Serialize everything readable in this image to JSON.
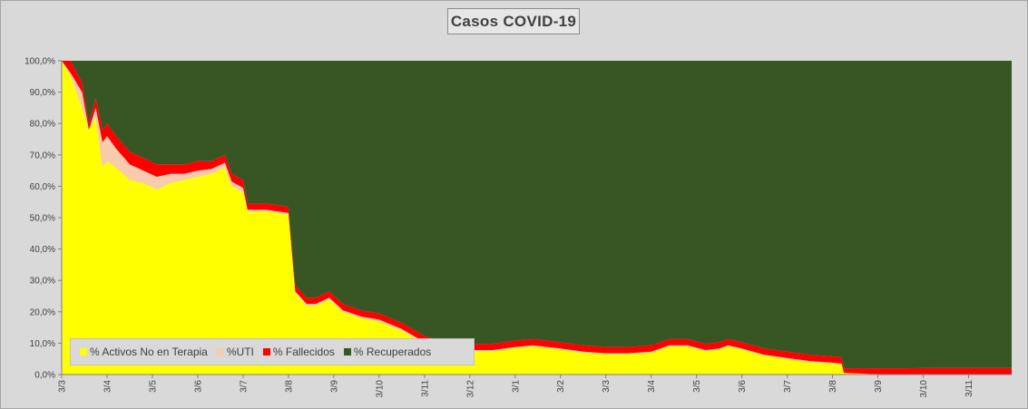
{
  "chart_data": {
    "type": "area",
    "stacked": "percent",
    "title": "Casos COVID-19",
    "xlabel": "",
    "ylabel": "",
    "ylim": [
      0,
      100
    ],
    "grid": false,
    "legend_position": "bottom-left",
    "y_ticks": [
      "0,0%",
      "10,0%",
      "20,0%",
      "30,0%",
      "40,0%",
      "50,0%",
      "60,0%",
      "70,0%",
      "80,0%",
      "90,0%",
      "100,0%"
    ],
    "x_ticks": [
      "3/3",
      "3/4",
      "3/5",
      "3/6",
      "3/7",
      "3/8",
      "3/9",
      "3/10",
      "3/11",
      "3/12",
      "3/1",
      "3/2",
      "3/3",
      "3/4",
      "3/5",
      "3/6",
      "3/7",
      "3/8",
      "3/9",
      "3/10",
      "3/11"
    ],
    "series": [
      {
        "name": "% Activos No en Terapia",
        "color": "#ffff00"
      },
      {
        "name": "%UTI",
        "color": "#f8cbad"
      },
      {
        "name": "% Fallecidos",
        "color": "#ff0000"
      },
      {
        "name": "% Recuperados",
        "color": "#375623"
      }
    ],
    "points": [
      {
        "t": 0.0,
        "active": 100,
        "uti": 0,
        "dead": 0
      },
      {
        "t": 0.2,
        "active": 95,
        "uti": 1,
        "dead": 4
      },
      {
        "t": 0.45,
        "active": 85,
        "uti": 5,
        "dead": 3
      },
      {
        "t": 0.6,
        "active": 78,
        "uti": 0,
        "dead": 2
      },
      {
        "t": 0.75,
        "active": 82,
        "uti": 3,
        "dead": 3
      },
      {
        "t": 0.9,
        "active": 66,
        "uti": 8,
        "dead": 4
      },
      {
        "t": 1.0,
        "active": 68,
        "uti": 8,
        "dead": 4
      },
      {
        "t": 1.2,
        "active": 66,
        "uti": 6,
        "dead": 4
      },
      {
        "t": 1.5,
        "active": 62,
        "uti": 5,
        "dead": 4
      },
      {
        "t": 1.8,
        "active": 61,
        "uti": 4,
        "dead": 4
      },
      {
        "t": 2.1,
        "active": 59,
        "uti": 4,
        "dead": 4
      },
      {
        "t": 2.4,
        "active": 61,
        "uti": 3,
        "dead": 3
      },
      {
        "t": 2.7,
        "active": 62,
        "uti": 2,
        "dead": 3
      },
      {
        "t": 3.0,
        "active": 63,
        "uti": 2,
        "dead": 3
      },
      {
        "t": 3.3,
        "active": 64,
        "uti": 1.5,
        "dead": 2.5
      },
      {
        "t": 3.6,
        "active": 66,
        "uti": 1.5,
        "dead": 2.5
      },
      {
        "t": 3.75,
        "active": 60,
        "uti": 1.5,
        "dead": 2.5
      },
      {
        "t": 4.0,
        "active": 58,
        "uti": 1.5,
        "dead": 2.5
      },
      {
        "t": 4.1,
        "active": 52,
        "uti": 0.5,
        "dead": 2
      },
      {
        "t": 4.5,
        "active": 52,
        "uti": 0.5,
        "dead": 2
      },
      {
        "t": 5.0,
        "active": 51,
        "uti": 0.5,
        "dead": 2
      },
      {
        "t": 5.15,
        "active": 26,
        "uti": 0.5,
        "dead": 2
      },
      {
        "t": 5.4,
        "active": 22,
        "uti": 0.5,
        "dead": 2
      },
      {
        "t": 5.6,
        "active": 22,
        "uti": 0.5,
        "dead": 2
      },
      {
        "t": 5.9,
        "active": 24,
        "uti": 0.5,
        "dead": 2
      },
      {
        "t": 6.2,
        "active": 20,
        "uti": 0.5,
        "dead": 2
      },
      {
        "t": 6.6,
        "active": 18,
        "uti": 0.5,
        "dead": 2
      },
      {
        "t": 7.0,
        "active": 17,
        "uti": 0.5,
        "dead": 2
      },
      {
        "t": 7.5,
        "active": 14,
        "uti": 0.5,
        "dead": 2
      },
      {
        "t": 8.0,
        "active": 10,
        "uti": 0.3,
        "dead": 2
      },
      {
        "t": 8.5,
        "active": 8,
        "uti": 0.3,
        "dead": 2
      },
      {
        "t": 9.0,
        "active": 7.5,
        "uti": 0.3,
        "dead": 2
      },
      {
        "t": 9.5,
        "active": 7.5,
        "uti": 0.3,
        "dead": 2
      },
      {
        "t": 10.0,
        "active": 8.5,
        "uti": 0.3,
        "dead": 2
      },
      {
        "t": 10.4,
        "active": 9,
        "uti": 0.3,
        "dead": 2
      },
      {
        "t": 11.0,
        "active": 8,
        "uti": 0.3,
        "dead": 2
      },
      {
        "t": 11.5,
        "active": 7,
        "uti": 0.3,
        "dead": 2
      },
      {
        "t": 12.0,
        "active": 6.5,
        "uti": 0.3,
        "dead": 2
      },
      {
        "t": 12.5,
        "active": 6.5,
        "uti": 0.3,
        "dead": 2
      },
      {
        "t": 13.0,
        "active": 7,
        "uti": 0.3,
        "dead": 2
      },
      {
        "t": 13.4,
        "active": 9,
        "uti": 0.3,
        "dead": 2
      },
      {
        "t": 13.8,
        "active": 9,
        "uti": 0.3,
        "dead": 2
      },
      {
        "t": 14.2,
        "active": 7.5,
        "uti": 0.3,
        "dead": 2
      },
      {
        "t": 14.5,
        "active": 8,
        "uti": 0.3,
        "dead": 2
      },
      {
        "t": 14.7,
        "active": 9,
        "uti": 0.3,
        "dead": 2
      },
      {
        "t": 15.0,
        "active": 8,
        "uti": 0.3,
        "dead": 2
      },
      {
        "t": 15.5,
        "active": 6,
        "uti": 0.3,
        "dead": 2
      },
      {
        "t": 16.0,
        "active": 5,
        "uti": 0.3,
        "dead": 2
      },
      {
        "t": 16.5,
        "active": 4,
        "uti": 0.3,
        "dead": 2
      },
      {
        "t": 17.0,
        "active": 3.5,
        "uti": 0.3,
        "dead": 2
      },
      {
        "t": 17.2,
        "active": 3.2,
        "uti": 0.3,
        "dead": 2
      },
      {
        "t": 17.25,
        "active": 0.5,
        "uti": 0,
        "dead": 1.5
      },
      {
        "t": 17.8,
        "active": 0.2,
        "uti": 0,
        "dead": 1.8
      },
      {
        "t": 18.5,
        "active": 0.1,
        "uti": 0,
        "dead": 1.9
      },
      {
        "t": 19.5,
        "active": 0.1,
        "uti": 0,
        "dead": 2
      },
      {
        "t": 20.9,
        "active": 0.1,
        "uti": 0,
        "dead": 2
      }
    ]
  }
}
